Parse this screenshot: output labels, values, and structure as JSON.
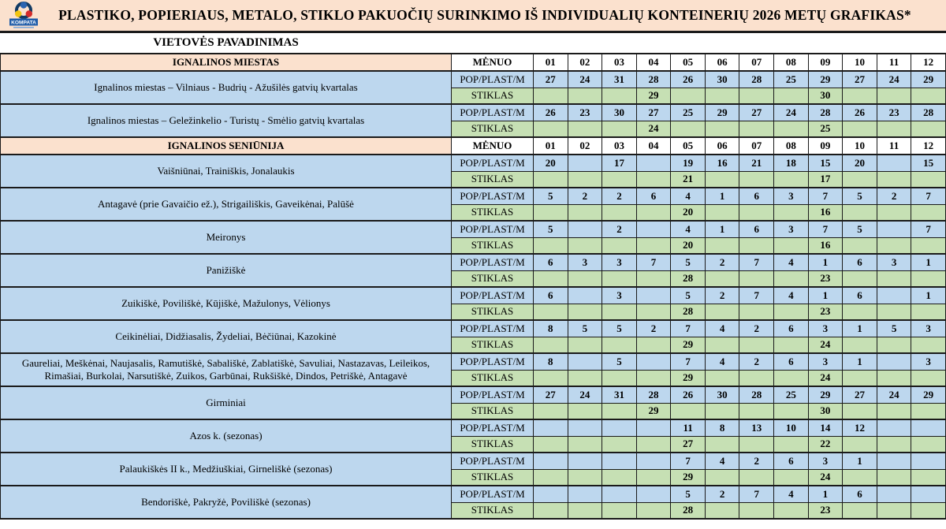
{
  "title": "PLASTIKO, POPIERIAUS, METALO, STIKLO PAKUOČIŲ SURINKIMO IŠ INDIVIDUALIŲ KONTEINERIŲ 2026 METŲ GRAFIKAS*",
  "logo": {
    "text": "KOMPATA"
  },
  "subheader": "VIETOVĖS PAVADINIMAS",
  "month_header_label": "MĖNUO",
  "months": [
    "01",
    "02",
    "03",
    "04",
    "05",
    "06",
    "07",
    "08",
    "09",
    "10",
    "11",
    "12"
  ],
  "row_type_labels": {
    "pop": "POP/PLAST/M",
    "stiklas": "STIKLAS"
  },
  "colors": {
    "peach": "#FBE1CE",
    "blue": "#BDD7EE",
    "green": "#C6E0B4",
    "border": "#1a1a1a"
  },
  "sections": [
    {
      "name": "IGNALINOS MIESTAS",
      "groups": [
        {
          "place": "Ignalinos miestas  – Vilniaus - Budrių - Ažušilės gatvių kvartalas",
          "pop": [
            "27",
            "24",
            "31",
            "28",
            "26",
            "30",
            "28",
            "25",
            "29",
            "27",
            "24",
            "29"
          ],
          "stiklas": [
            "",
            "",
            "",
            "29",
            "",
            "",
            "",
            "",
            "30",
            "",
            "",
            ""
          ]
        },
        {
          "place": "Ignalinos miestas –  Geležinkelio - Turistų - Smėlio gatvių kvartalas",
          "pop": [
            "26",
            "23",
            "30",
            "27",
            "25",
            "29",
            "27",
            "24",
            "28",
            "26",
            "23",
            "28"
          ],
          "stiklas": [
            "",
            "",
            "",
            "24",
            "",
            "",
            "",
            "",
            "25",
            "",
            "",
            ""
          ]
        }
      ]
    },
    {
      "name": "IGNALINOS SENIŪNIJA",
      "groups": [
        {
          "place": "Vaišniūnai, Trainiškis, Jonalaukis",
          "pop": [
            "20",
            "",
            "17",
            "",
            "19",
            "16",
            "21",
            "18",
            "15",
            "20",
            "",
            "15"
          ],
          "stiklas": [
            "",
            "",
            "",
            "",
            "21",
            "",
            "",
            "",
            "17",
            "",
            "",
            ""
          ]
        },
        {
          "place": "Antagavė (prie Gavaičio ež.), Strigailiškis, Gaveikėnai, Palūšė",
          "pop": [
            "5",
            "2",
            "2",
            "6",
            "4",
            "1",
            "6",
            "3",
            "7",
            "5",
            "2",
            "7"
          ],
          "stiklas": [
            "",
            "",
            "",
            "",
            "20",
            "",
            "",
            "",
            "16",
            "",
            "",
            ""
          ]
        },
        {
          "place": "Meironys",
          "pop": [
            "5",
            "",
            "2",
            "",
            "4",
            "1",
            "6",
            "3",
            "7",
            "5",
            "",
            "7"
          ],
          "stiklas": [
            "",
            "",
            "",
            "",
            "20",
            "",
            "",
            "",
            "16",
            "",
            "",
            ""
          ]
        },
        {
          "place": "Panižiškė",
          "pop": [
            "6",
            "3",
            "3",
            "7",
            "5",
            "2",
            "7",
            "4",
            "1",
            "6",
            "3",
            "1"
          ],
          "stiklas": [
            "",
            "",
            "",
            "",
            "28",
            "",
            "",
            "",
            "23",
            "",
            "",
            ""
          ]
        },
        {
          "place": "Zuikiškė, Poviliškė, Kūjiškė, Mažulonys, Vėlionys",
          "pop": [
            "6",
            "",
            "3",
            "",
            "5",
            "2",
            "7",
            "4",
            "1",
            "6",
            "",
            "1"
          ],
          "stiklas": [
            "",
            "",
            "",
            "",
            "28",
            "",
            "",
            "",
            "23",
            "",
            "",
            ""
          ]
        },
        {
          "place": "Ceikinėliai, Didžiasalis, Žydeliai, Bėčiūnai, Kazokinė",
          "pop": [
            "8",
            "5",
            "5",
            "2",
            "7",
            "4",
            "2",
            "6",
            "3",
            "1",
            "5",
            "3"
          ],
          "stiklas": [
            "",
            "",
            "",
            "",
            "29",
            "",
            "",
            "",
            "24",
            "",
            "",
            ""
          ]
        },
        {
          "place": "Gaureliai, Meškėnai, Naujasalis, Ramutiškė, Sabališkė, Zablatiškė, Savuliai, Nastazavas, Leileikos, Rimašiai, Burkolai, Narsutiškė, Zuikos, Garbūnai, Rukšiškė, Dindos, Petriškė, Antagavė",
          "pop": [
            "8",
            "",
            "5",
            "",
            "7",
            "4",
            "2",
            "6",
            "3",
            "1",
            "",
            "3"
          ],
          "stiklas": [
            "",
            "",
            "",
            "",
            "29",
            "",
            "",
            "",
            "24",
            "",
            "",
            ""
          ]
        },
        {
          "place": "Girminiai",
          "pop": [
            "27",
            "24",
            "31",
            "28",
            "26",
            "30",
            "28",
            "25",
            "29",
            "27",
            "24",
            "29"
          ],
          "stiklas": [
            "",
            "",
            "",
            "29",
            "",
            "",
            "",
            "",
            "30",
            "",
            "",
            ""
          ]
        },
        {
          "place": "Azos k. (sezonas)",
          "pop": [
            "",
            "",
            "",
            "",
            "11",
            "8",
            "13",
            "10",
            "14",
            "12",
            "",
            ""
          ],
          "stiklas": [
            "",
            "",
            "",
            "",
            "27",
            "",
            "",
            "",
            "22",
            "",
            "",
            ""
          ]
        },
        {
          "place": "Palaukiškės II k., Medžiuškiai, Girneliškė (sezonas)",
          "pop": [
            "",
            "",
            "",
            "",
            "7",
            "4",
            "2",
            "6",
            "3",
            "1",
            "",
            ""
          ],
          "stiklas": [
            "",
            "",
            "",
            "",
            "29",
            "",
            "",
            "",
            "24",
            "",
            "",
            ""
          ]
        },
        {
          "place": "Bendoriškė, Pakryžė, Poviliškė (sezonas)",
          "pop": [
            "",
            "",
            "",
            "",
            "5",
            "2",
            "7",
            "4",
            "1",
            "6",
            "",
            ""
          ],
          "stiklas": [
            "",
            "",
            "",
            "",
            "28",
            "",
            "",
            "",
            "23",
            "",
            "",
            ""
          ]
        }
      ]
    }
  ]
}
